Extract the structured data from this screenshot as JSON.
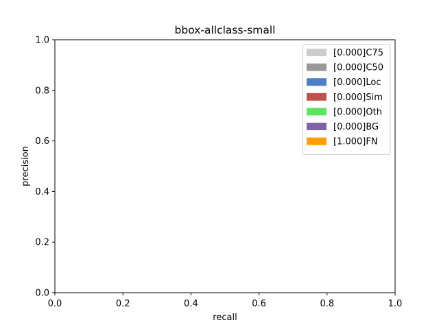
{
  "chart_data": {
    "type": "area",
    "title": "bbox-allclass-small",
    "xlabel": "recall",
    "ylabel": "precision",
    "xlim": [
      0.0,
      1.0
    ],
    "ylim": [
      0.0,
      1.0
    ],
    "xticks": [
      "0.0",
      "0.2",
      "0.4",
      "0.6",
      "0.8",
      "1.0"
    ],
    "yticks": [
      "0.0",
      "0.2",
      "0.4",
      "0.6",
      "0.8",
      "1.0"
    ],
    "grid": false,
    "legend_position": "top-right",
    "series": [
      {
        "name": "[0.000]C75",
        "value": 0.0,
        "color": "#cccccc"
      },
      {
        "name": "[0.000]C50",
        "value": 0.0,
        "color": "#999999"
      },
      {
        "name": "[0.000]Loc",
        "value": 0.0,
        "color": "#4c7fc3"
      },
      {
        "name": "[0.000]Sim",
        "value": 0.0,
        "color": "#c0504d"
      },
      {
        "name": "[0.000]Oth",
        "value": 0.0,
        "color": "#5ee35e"
      },
      {
        "name": "[0.000]BG",
        "value": 0.0,
        "color": "#8064a2"
      },
      {
        "name": "[1.000]FN",
        "value": 1.0,
        "color": "#ff9e00"
      }
    ]
  }
}
